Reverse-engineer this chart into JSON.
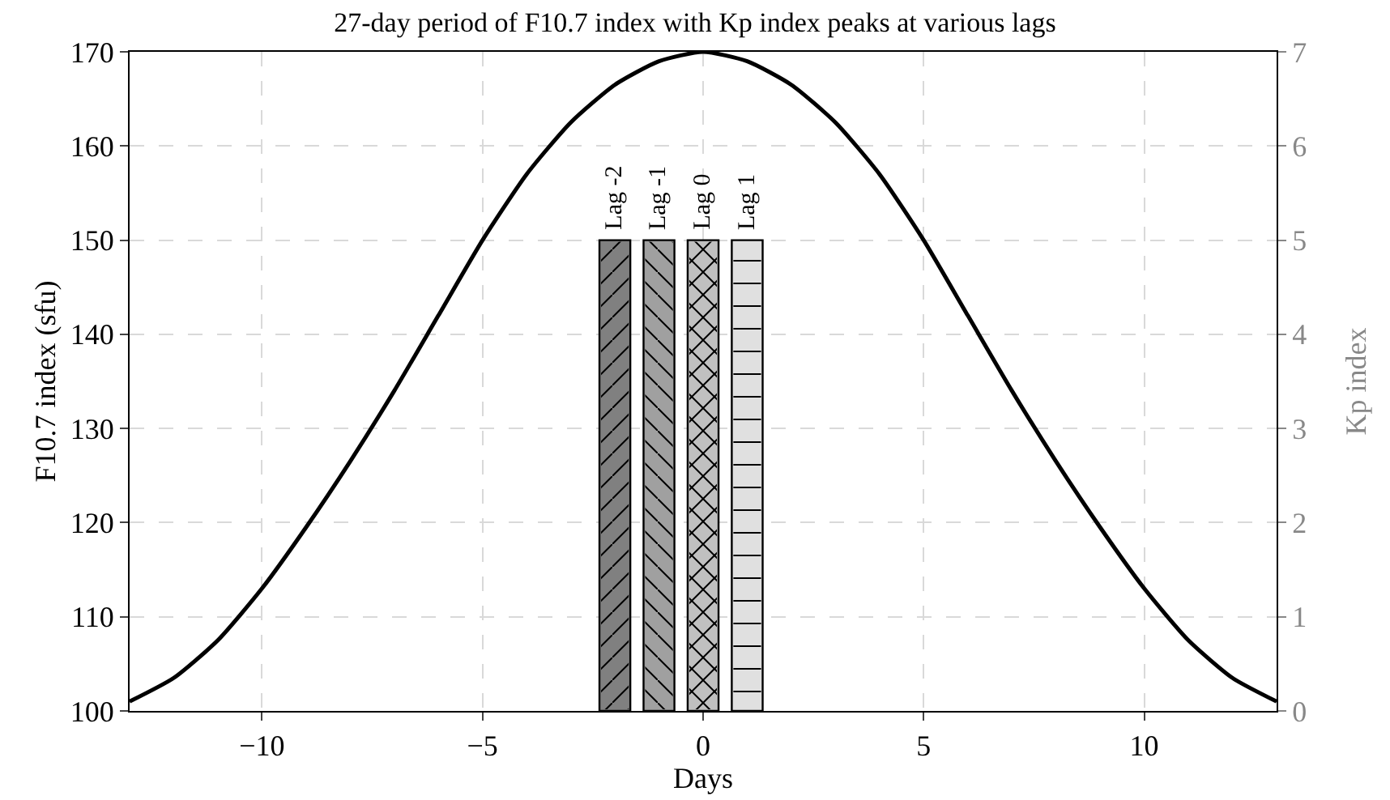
{
  "chart_data": {
    "type": "line",
    "title": "27-day period of F10.7 index with Kp index peaks at various lags",
    "xlabel": "Days",
    "ylabel": "F10.7 index (sfu)",
    "y2label": "Kp index",
    "xlim": [
      -13,
      13
    ],
    "xticks": [
      -10,
      -5,
      0,
      5,
      10
    ],
    "ylim": [
      100,
      170
    ],
    "yticks": [
      100,
      110,
      120,
      130,
      140,
      150,
      160,
      170
    ],
    "y2lim": [
      0,
      7
    ],
    "y2ticks": [
      0,
      1,
      2,
      3,
      4,
      5,
      6,
      7
    ],
    "grid": true,
    "series": [
      {
        "color": "#000000",
        "x": [
          -13,
          -12,
          -11,
          -10,
          -9,
          -8,
          -7,
          -6,
          -5,
          -4,
          -3,
          -2,
          -1,
          0,
          1,
          2,
          3,
          4,
          5,
          6,
          7,
          8,
          9,
          10,
          11,
          12,
          13
        ],
        "values": [
          101,
          103.5,
          107.5,
          113,
          119.5,
          126.5,
          134,
          142,
          150,
          157,
          162.5,
          166.5,
          169,
          170,
          169,
          166.5,
          162.5,
          157,
          150,
          142,
          134,
          126.5,
          119.5,
          113,
          107.5,
          103.5,
          101
        ]
      },
      {
        "type": "bar",
        "axis": "y2",
        "name": "Lag -2",
        "color": "#808080",
        "x": [
          -2
        ],
        "values": [
          5
        ]
      },
      {
        "type": "bar",
        "axis": "y2",
        "name": "Lag -1",
        "color": "#a0a0a0",
        "x": [
          -1
        ],
        "values": [
          5
        ]
      },
      {
        "type": "bar",
        "axis": "y2",
        "name": "Lag 0",
        "color": "#c0c0c0",
        "x": [
          0
        ],
        "values": [
          5
        ]
      },
      {
        "type": "bar",
        "axis": "y2",
        "name": "Lag 1",
        "color": "#e0e0e0",
        "x": [
          1
        ],
        "values": [
          5
        ]
      }
    ]
  }
}
